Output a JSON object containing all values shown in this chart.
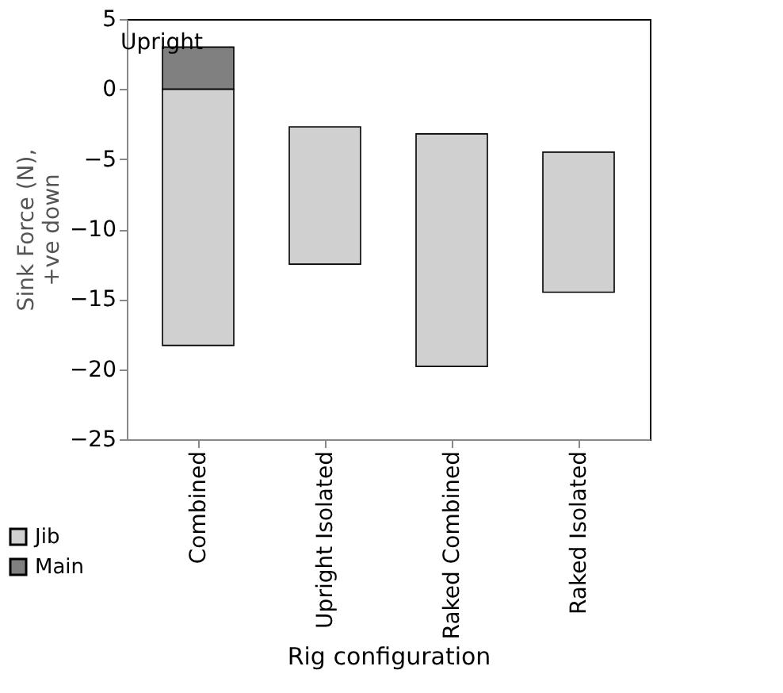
{
  "chart_data": {
    "type": "bar",
    "categories": [
      "Combined",
      "Upright Isolated",
      "Raked Combined",
      "Raked Isolated"
    ],
    "series": [
      {
        "name": "Jib",
        "color": "#d0d0d0",
        "values": [
          18.3,
          9.8,
          16.6,
          10
        ],
        "base": [
          -18.3,
          -12.5,
          -19.8,
          -14.5
        ]
      },
      {
        "name": "Main",
        "color": "#808080",
        "values": [
          3,
          null,
          null,
          null
        ],
        "base": [
          0,
          null,
          null,
          null
        ]
      }
    ],
    "xlabel": "Rig configuration",
    "ylabel": "Sink Force (N),\n+ve down",
    "ylim": [
      -25,
      5
    ],
    "yticks": [
      -25,
      -20,
      -15,
      -10,
      -5,
      0,
      5
    ],
    "annotations": [
      "Upright"
    ],
    "legend": "bottom left",
    "grid": false
  }
}
